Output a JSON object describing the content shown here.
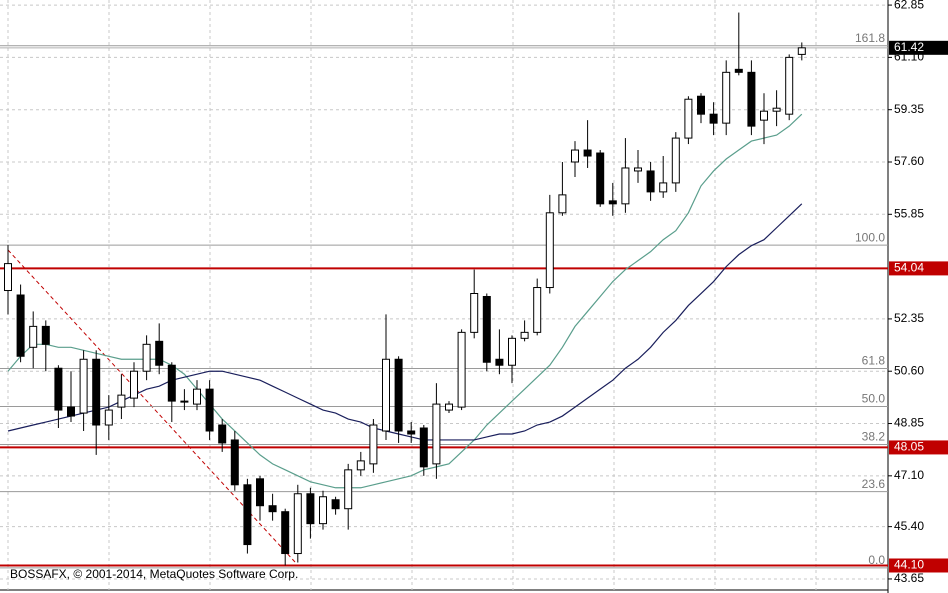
{
  "chart_data": {
    "type": "candlestick",
    "ylim": [
      43.28,
      63.02
    ],
    "yticks": [
      62.85,
      {
        "value": 61.1,
        "label": "61.10"
      },
      59.35,
      {
        "value": 57.6,
        "label": "57.60"
      },
      55.85,
      52.35,
      {
        "value": 50.6,
        "label": "50.60"
      },
      48.85,
      {
        "value": 47.1,
        "label": "47.10"
      },
      {
        "value": 45.4,
        "label": "45.40"
      },
      43.65
    ],
    "grid": true,
    "open": [
      53.3,
      53.15,
      51.4,
      52.1,
      50.7,
      49.4,
      49.2,
      51.0,
      48.8,
      49.4,
      49.7,
      50.6,
      51.6,
      50.8,
      49.6,
      49.5,
      50.0,
      48.8,
      48.3,
      46.8,
      47.0,
      46.1,
      45.9,
      44.5,
      46.5,
      45.5,
      46.3,
      46.0,
      47.3,
      47.5,
      48.6,
      51.0,
      48.6,
      48.7,
      47.5,
      49.3,
      49.4,
      51.9,
      53.1,
      51.0,
      50.8,
      51.7,
      51.9,
      53.4,
      55.9,
      57.6,
      58.0,
      57.9,
      56.3,
      56.2,
      57.3,
      57.3,
      56.6,
      56.9,
      58.4,
      59.8,
      59.2,
      58.9,
      60.7,
      60.6,
      59.0,
      59.3,
      59.2,
      61.2
    ],
    "high": [
      54.82,
      53.5,
      52.6,
      52.3,
      50.8,
      50.6,
      51.3,
      51.3,
      49.8,
      50.5,
      50.9,
      51.8,
      52.2,
      50.9,
      50.0,
      50.3,
      50.3,
      49.0,
      48.6,
      47.0,
      47.1,
      46.5,
      46.0,
      46.8,
      46.7,
      46.6,
      46.4,
      47.5,
      47.9,
      49.0,
      52.5,
      51.1,
      48.9,
      48.8,
      50.2,
      49.6,
      52.0,
      54.0,
      53.2,
      52.0,
      51.8,
      52.3,
      53.7,
      56.5,
      57.6,
      58.3,
      59.0,
      58.0,
      56.9,
      58.4,
      58.0,
      57.6,
      57.8,
      58.6,
      59.8,
      59.9,
      59.6,
      61.0,
      62.6,
      61.0,
      59.9,
      60.0,
      61.2,
      61.6
    ],
    "low": [
      52.5,
      50.9,
      50.7,
      50.6,
      48.7,
      48.9,
      48.6,
      47.8,
      48.3,
      49.0,
      49.4,
      50.3,
      50.5,
      48.9,
      49.3,
      49.3,
      48.3,
      47.9,
      46.6,
      44.5,
      45.6,
      45.6,
      44.1,
      44.2,
      45.0,
      45.3,
      45.8,
      45.3,
      47.1,
      47.2,
      48.3,
      48.2,
      48.2,
      47.1,
      47.0,
      49.2,
      49.3,
      51.7,
      50.6,
      50.5,
      50.2,
      51.6,
      51.8,
      53.2,
      55.8,
      57.1,
      57.4,
      56.1,
      55.8,
      55.9,
      56.9,
      56.3,
      56.4,
      56.6,
      58.2,
      58.9,
      58.5,
      58.5,
      60.5,
      58.5,
      58.2,
      58.8,
      59.0,
      61.0
    ],
    "close": [
      54.2,
      51.1,
      52.1,
      51.5,
      49.3,
      49.1,
      51.0,
      48.8,
      49.3,
      49.8,
      50.6,
      51.5,
      50.8,
      49.6,
      49.6,
      50.0,
      48.6,
      48.2,
      46.8,
      44.8,
      46.1,
      45.9,
      44.5,
      46.5,
      45.5,
      46.4,
      46.0,
      47.3,
      47.6,
      48.8,
      51.0,
      48.6,
      48.5,
      47.4,
      49.5,
      49.5,
      51.9,
      53.2,
      50.9,
      50.8,
      51.7,
      51.9,
      53.4,
      55.9,
      56.5,
      58.0,
      57.8,
      56.2,
      56.2,
      57.4,
      57.4,
      56.6,
      56.9,
      58.4,
      59.7,
      59.2,
      58.9,
      60.6,
      60.6,
      58.8,
      59.3,
      59.4,
      61.1,
      61.42
    ],
    "moving_averages": [
      {
        "color": "#5a9e8c",
        "values": [
          50.6,
          51.1,
          51.5,
          51.5,
          51.4,
          51.4,
          51.3,
          51.2,
          51.1,
          51.0,
          51.0,
          51.0,
          51.0,
          50.8,
          50.5,
          50.0,
          49.5,
          49.0,
          48.6,
          48.2,
          47.8,
          47.5,
          47.3,
          47.1,
          46.9,
          46.8,
          46.7,
          46.7,
          46.7,
          46.8,
          46.9,
          47.0,
          47.1,
          47.3,
          47.4,
          47.5,
          47.9,
          48.3,
          48.8,
          49.2,
          49.6,
          50.0,
          50.4,
          50.8,
          51.4,
          52.1,
          52.6,
          53.1,
          53.6,
          54.0,
          54.3,
          54.6,
          55.0,
          55.3,
          55.9,
          56.8,
          57.3,
          57.7,
          58.0,
          58.3,
          58.4,
          58.5,
          58.8,
          59.2
        ]
      },
      {
        "color": "#1a1f5c",
        "values": [
          48.6,
          48.7,
          48.8,
          48.9,
          49.0,
          49.1,
          49.2,
          49.3,
          49.4,
          49.6,
          49.8,
          50.0,
          50.1,
          50.3,
          50.4,
          50.5,
          50.6,
          50.6,
          50.5,
          50.4,
          50.3,
          50.1,
          49.9,
          49.7,
          49.5,
          49.3,
          49.2,
          49.0,
          48.9,
          48.7,
          48.6,
          48.5,
          48.4,
          48.3,
          48.3,
          48.3,
          48.3,
          48.3,
          48.4,
          48.5,
          48.5,
          48.6,
          48.8,
          48.9,
          49.1,
          49.4,
          49.7,
          50.0,
          50.3,
          50.7,
          51.0,
          51.4,
          51.9,
          52.3,
          52.8,
          53.2,
          53.6,
          54.1,
          54.5,
          54.8,
          55.0,
          55.4,
          55.8,
          56.2
        ]
      }
    ],
    "price_levels": {
      "values": [
        54.04,
        48.05,
        44.1
      ],
      "value_labels": [
        "54.04",
        "48.05",
        "44.10"
      ],
      "color": "#c00000"
    },
    "current_price": {
      "value": 61.42,
      "color": "#000000"
    },
    "fibonacci": {
      "levels": [
        "161.8",
        "100.0",
        "61.8",
        "50.0",
        "38.2",
        "23.6",
        "0.0"
      ],
      "prices": [
        61.49,
        54.82,
        50.69,
        49.42,
        48.15,
        46.57,
        44.02
      ],
      "color": "#9a9a9a"
    },
    "copyright": "BOSSAFX, © 2001-2014, MetaQuotes Software Corp."
  }
}
